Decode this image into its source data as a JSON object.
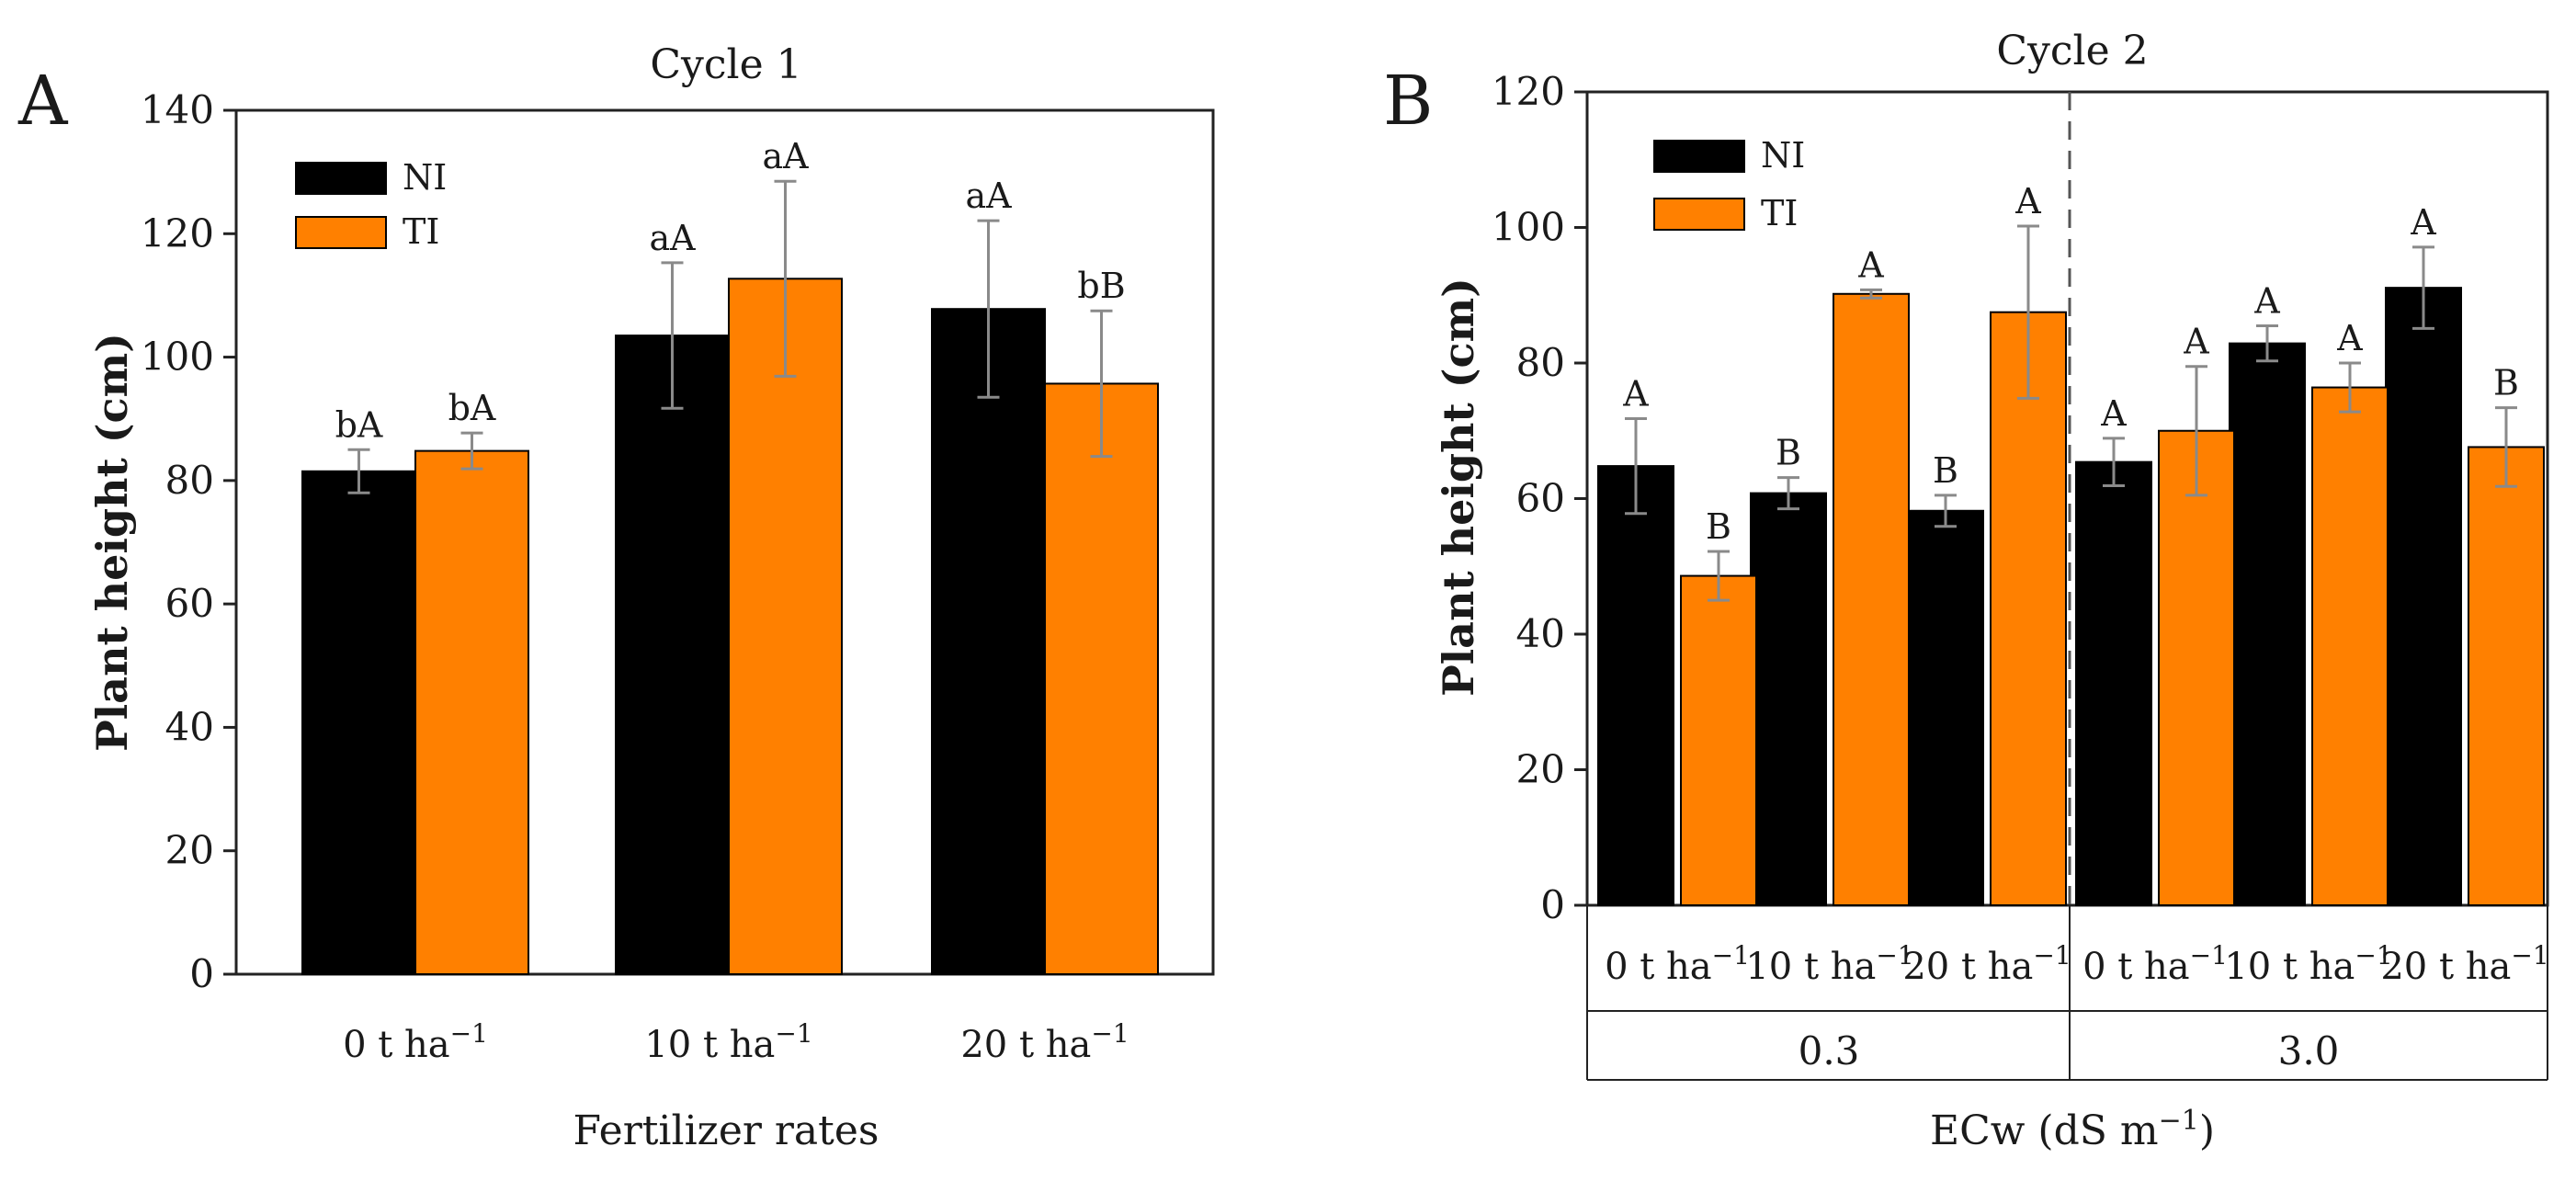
{
  "colors": {
    "NI": "#000000",
    "TI": "#ff8000",
    "error_bar": "#8a8a8a",
    "axis": "#222222"
  },
  "chart_data": [
    {
      "panel": "A",
      "type": "bar",
      "title": "Cycle 1",
      "xlabel": "Fertilizer rates",
      "ylabel": "Plant height (cm)",
      "ylim": [
        0,
        140
      ],
      "yticks": [
        0,
        20,
        40,
        60,
        80,
        100,
        120,
        140
      ],
      "categories": [
        {
          "base": "0 t ha",
          "sup": "−1"
        },
        {
          "base": "10 t ha",
          "sup": "−1"
        },
        {
          "base": "20 t ha",
          "sup": "−1"
        }
      ],
      "legend": [
        "NI",
        "TI"
      ],
      "series": [
        {
          "name": "NI",
          "values": [
            81.5,
            103.5,
            107.8
          ],
          "errors": [
            3.5,
            11.8,
            14.3
          ],
          "labels": [
            "bA",
            "aA",
            "aA"
          ]
        },
        {
          "name": "TI",
          "values": [
            84.8,
            112.7,
            95.7
          ],
          "errors": [
            2.9,
            15.8,
            11.8
          ],
          "labels": [
            "bA",
            "aA",
            "bB"
          ]
        }
      ]
    },
    {
      "panel": "B",
      "type": "bar",
      "title": "Cycle 2",
      "xlabel": {
        "base": "ECw (dS m",
        "sup": "−1",
        "close": ")"
      },
      "ylabel": "Plant height (cm)",
      "ylim": [
        0,
        120
      ],
      "yticks": [
        0,
        20,
        40,
        60,
        80,
        100,
        120
      ],
      "categories": [
        {
          "base": "0 t ha",
          "sup": "−1"
        },
        {
          "base": "10 t ha",
          "sup": "−1"
        },
        {
          "base": "20 t ha",
          "sup": "−1"
        },
        {
          "base": "0 t ha",
          "sup": "−1"
        },
        {
          "base": "10 t ha",
          "sup": "−1"
        },
        {
          "base": "20 t ha",
          "sup": "−1"
        }
      ],
      "groups": [
        {
          "label": "0.3",
          "span": [
            0,
            2
          ]
        },
        {
          "label": "3.0",
          "span": [
            3,
            5
          ]
        }
      ],
      "legend": [
        "NI",
        "TI"
      ],
      "series": [
        {
          "name": "NI",
          "values": [
            64.8,
            60.8,
            58.2,
            65.4,
            82.9,
            91.1
          ],
          "errors": [
            7.0,
            2.3,
            2.3,
            3.5,
            2.6,
            6.0
          ],
          "labels": [
            "A",
            "B",
            "B",
            "A",
            "A",
            "A"
          ]
        },
        {
          "name": "TI",
          "values": [
            48.6,
            90.2,
            87.5,
            70.0,
            76.4,
            67.6
          ],
          "errors": [
            3.6,
            0.6,
            12.7,
            9.5,
            3.6,
            5.8
          ],
          "labels": [
            "B",
            "A",
            "A",
            "A",
            "A",
            "B"
          ]
        }
      ]
    }
  ]
}
